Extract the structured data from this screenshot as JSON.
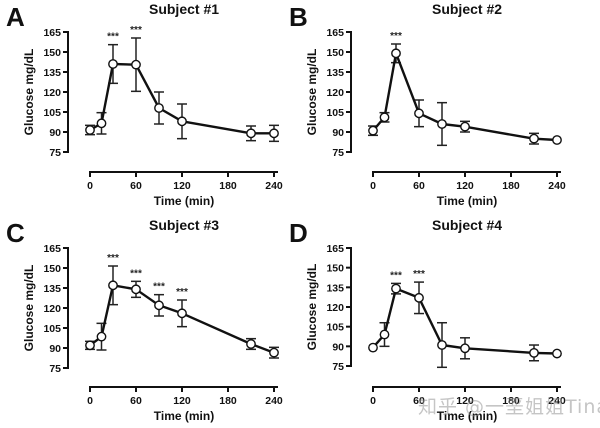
{
  "chart_data": [
    {
      "type": "line",
      "panel_label": "A",
      "title": "Subject #1",
      "xlabel": "Time (min)",
      "ylabel": "Glucose mg/dL",
      "xlim": [
        0,
        240
      ],
      "ylim": [
        75,
        165
      ],
      "xticks": [
        0,
        60,
        120,
        180,
        240
      ],
      "yticks": [
        75,
        90,
        105,
        120,
        135,
        150,
        165
      ],
      "x": [
        0,
        15,
        30,
        60,
        90,
        120,
        210,
        240
      ],
      "y": [
        91.5,
        96.5,
        141,
        140.5,
        108,
        98,
        89,
        89
      ],
      "error": [
        3.5,
        8,
        14.5,
        20,
        12,
        13,
        5.5,
        6
      ],
      "annotations": [
        {
          "x": 30,
          "text": "***"
        },
        {
          "x": 60,
          "text": "***"
        }
      ]
    },
    {
      "type": "line",
      "panel_label": "B",
      "title": "Subject #2",
      "xlabel": "Time (min)",
      "ylabel": "Glucose mg/dL",
      "xlim": [
        0,
        240
      ],
      "ylim": [
        75,
        165
      ],
      "xticks": [
        0,
        60,
        120,
        180,
        240
      ],
      "yticks": [
        75,
        90,
        105,
        120,
        135,
        150,
        165
      ],
      "x": [
        0,
        15,
        30,
        60,
        90,
        120,
        210,
        240
      ],
      "y": [
        91,
        101,
        149,
        104,
        96,
        94,
        85,
        84
      ],
      "error": [
        3.5,
        3.5,
        7,
        10,
        16,
        4,
        4,
        0
      ],
      "annotations": [
        {
          "x": 30,
          "text": "***"
        }
      ]
    },
    {
      "type": "line",
      "panel_label": "C",
      "title": "Subject #3",
      "xlabel": "Time (min)",
      "ylabel": "Glucose mg/dL",
      "xlim": [
        0,
        240
      ],
      "ylim": [
        75,
        165
      ],
      "xticks": [
        0,
        60,
        120,
        180,
        240
      ],
      "yticks": [
        75,
        90,
        105,
        120,
        135,
        150,
        165
      ],
      "x": [
        0,
        15,
        30,
        60,
        90,
        120,
        210,
        240
      ],
      "y": [
        92,
        98.5,
        137,
        134,
        122,
        116,
        93,
        86.5
      ],
      "error": [
        3,
        10,
        14.5,
        6,
        8,
        10,
        4,
        4
      ],
      "annotations": [
        {
          "x": 30,
          "text": "***"
        },
        {
          "x": 60,
          "text": "***"
        },
        {
          "x": 90,
          "text": "***"
        },
        {
          "x": 120,
          "text": "***"
        }
      ]
    },
    {
      "type": "line",
      "panel_label": "D",
      "title": "Subject #4",
      "xlabel": "Time (min)",
      "ylabel": "Glucose mg/dL",
      "xlim": [
        0,
        240
      ],
      "ylim": [
        75,
        165
      ],
      "xticks": [
        0,
        60,
        120,
        180,
        240
      ],
      "yticks": [
        75,
        90,
        105,
        120,
        135,
        150,
        165
      ],
      "x": [
        0,
        15,
        30,
        60,
        90,
        120,
        210,
        240
      ],
      "y": [
        89,
        99,
        134,
        127,
        91,
        88.5,
        85,
        84.5
      ],
      "error": [
        0,
        9,
        4,
        12,
        17,
        8,
        6,
        0
      ],
      "annotations": [
        {
          "x": 30,
          "text": "***"
        },
        {
          "x": 60,
          "text": "***"
        }
      ]
    }
  ],
  "watermark": "知乎 @一垩姐姐Tina"
}
